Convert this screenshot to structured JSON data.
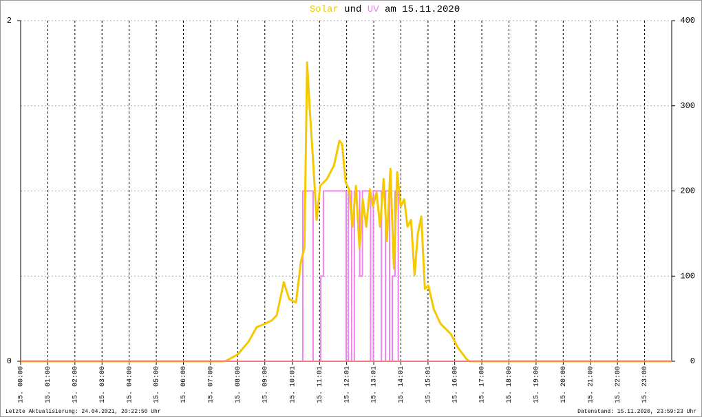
{
  "chart_data": {
    "type": "line",
    "title_connector": "und",
    "title_suffix": "am 15.11.2020",
    "xlim": [
      0,
      24
    ],
    "xticks": [
      {
        "value": 0,
        "label": "15. 00:00"
      },
      {
        "value": 1,
        "label": "15. 01:00"
      },
      {
        "value": 2,
        "label": "15. 02:00"
      },
      {
        "value": 3,
        "label": "15. 03:00"
      },
      {
        "value": 4,
        "label": "15. 04:00"
      },
      {
        "value": 5,
        "label": "15. 05:00"
      },
      {
        "value": 6,
        "label": "15. 06:00"
      },
      {
        "value": 7,
        "label": "15. 07:00"
      },
      {
        "value": 8,
        "label": "15. 08:00"
      },
      {
        "value": 9,
        "label": "15. 09:00"
      },
      {
        "value": 10.0167,
        "label": "15. 10:01"
      },
      {
        "value": 11.0167,
        "label": "15. 11:01"
      },
      {
        "value": 12.0167,
        "label": "15. 12:01"
      },
      {
        "value": 13.0167,
        "label": "15. 13:01"
      },
      {
        "value": 14.0167,
        "label": "15. 14:01"
      },
      {
        "value": 15.0167,
        "label": "15. 15:01"
      },
      {
        "value": 16,
        "label": "15. 16:00"
      },
      {
        "value": 17,
        "label": "15. 17:00"
      },
      {
        "value": 18,
        "label": "15. 18:00"
      },
      {
        "value": 19,
        "label": "15. 19:00"
      },
      {
        "value": 20,
        "label": "15. 20:00"
      },
      {
        "value": 21,
        "label": "15. 21:00"
      },
      {
        "value": 22,
        "label": "15. 22:00"
      },
      {
        "value": 23,
        "label": "15. 23:00"
      }
    ],
    "ylim": [
      0,
      2
    ],
    "yticks": [
      0,
      2
    ],
    "y2lim": [
      0,
      400
    ],
    "y2ticks": [
      0,
      100,
      200,
      300,
      400
    ],
    "grid": true,
    "series": [
      {
        "name": "Solar",
        "color": "#f5c800",
        "axis": "y2",
        "x": [
          0,
          7.5,
          7.6,
          8.0,
          8.4,
          8.7,
          9.0,
          9.26,
          9.44,
          9.7,
          9.9,
          10.15,
          10.33,
          10.46,
          10.56,
          10.66,
          10.79,
          10.91,
          11.04,
          11.29,
          11.55,
          11.75,
          11.85,
          11.98,
          12.11,
          12.23,
          12.36,
          12.49,
          12.61,
          12.74,
          12.87,
          12.99,
          13.12,
          13.25,
          13.38,
          13.5,
          13.63,
          13.76,
          13.88,
          14.01,
          14.14,
          14.26,
          14.39,
          14.52,
          14.64,
          14.77,
          14.9,
          15.03,
          15.23,
          15.48,
          15.86,
          16.12,
          16.45,
          16.55,
          24
        ],
        "values": [
          0,
          0,
          1,
          8,
          23,
          40,
          44,
          48,
          54,
          93,
          73,
          69,
          117,
          133,
          351,
          295,
          230,
          166,
          206,
          214,
          230,
          259,
          255,
          210,
          202,
          158,
          206,
          133,
          190,
          158,
          202,
          182,
          198,
          158,
          214,
          141,
          226,
          109,
          222,
          182,
          190,
          158,
          166,
          101,
          150,
          170,
          85,
          89,
          61,
          44,
          32,
          16,
          2,
          0,
          0
        ]
      },
      {
        "name": "UV",
        "color": "#ee82ee",
        "x": [
          0,
          10.4,
          10.4,
          10.78,
          10.78,
          11.06,
          11.06,
          11.16,
          11.16,
          12.0,
          12.0,
          12.08,
          12.08,
          12.2,
          12.2,
          12.3,
          12.3,
          12.5,
          12.5,
          12.6,
          12.6,
          12.9,
          12.9,
          13.0,
          13.0,
          13.3,
          13.3,
          13.45,
          13.45,
          13.6,
          13.6,
          13.7,
          13.7,
          13.8,
          13.8,
          13.92,
          13.92,
          24
        ],
        "values": [
          0,
          0,
          1,
          1,
          0,
          0,
          0.5,
          0.5,
          1,
          1,
          0,
          0,
          1,
          1,
          0,
          0,
          1,
          1,
          0.5,
          0.5,
          1,
          1,
          0,
          0,
          1,
          1,
          0,
          0,
          1,
          1,
          0,
          0,
          0.5,
          0.5,
          1,
          1,
          0,
          0
        ]
      }
    ]
  },
  "footer": {
    "left": "Letzte Aktualisierung: 24.04.2021, 20:22:50 Uhr",
    "right": "Datenstand: 15.11.2020, 23:59:23 Uhr"
  }
}
